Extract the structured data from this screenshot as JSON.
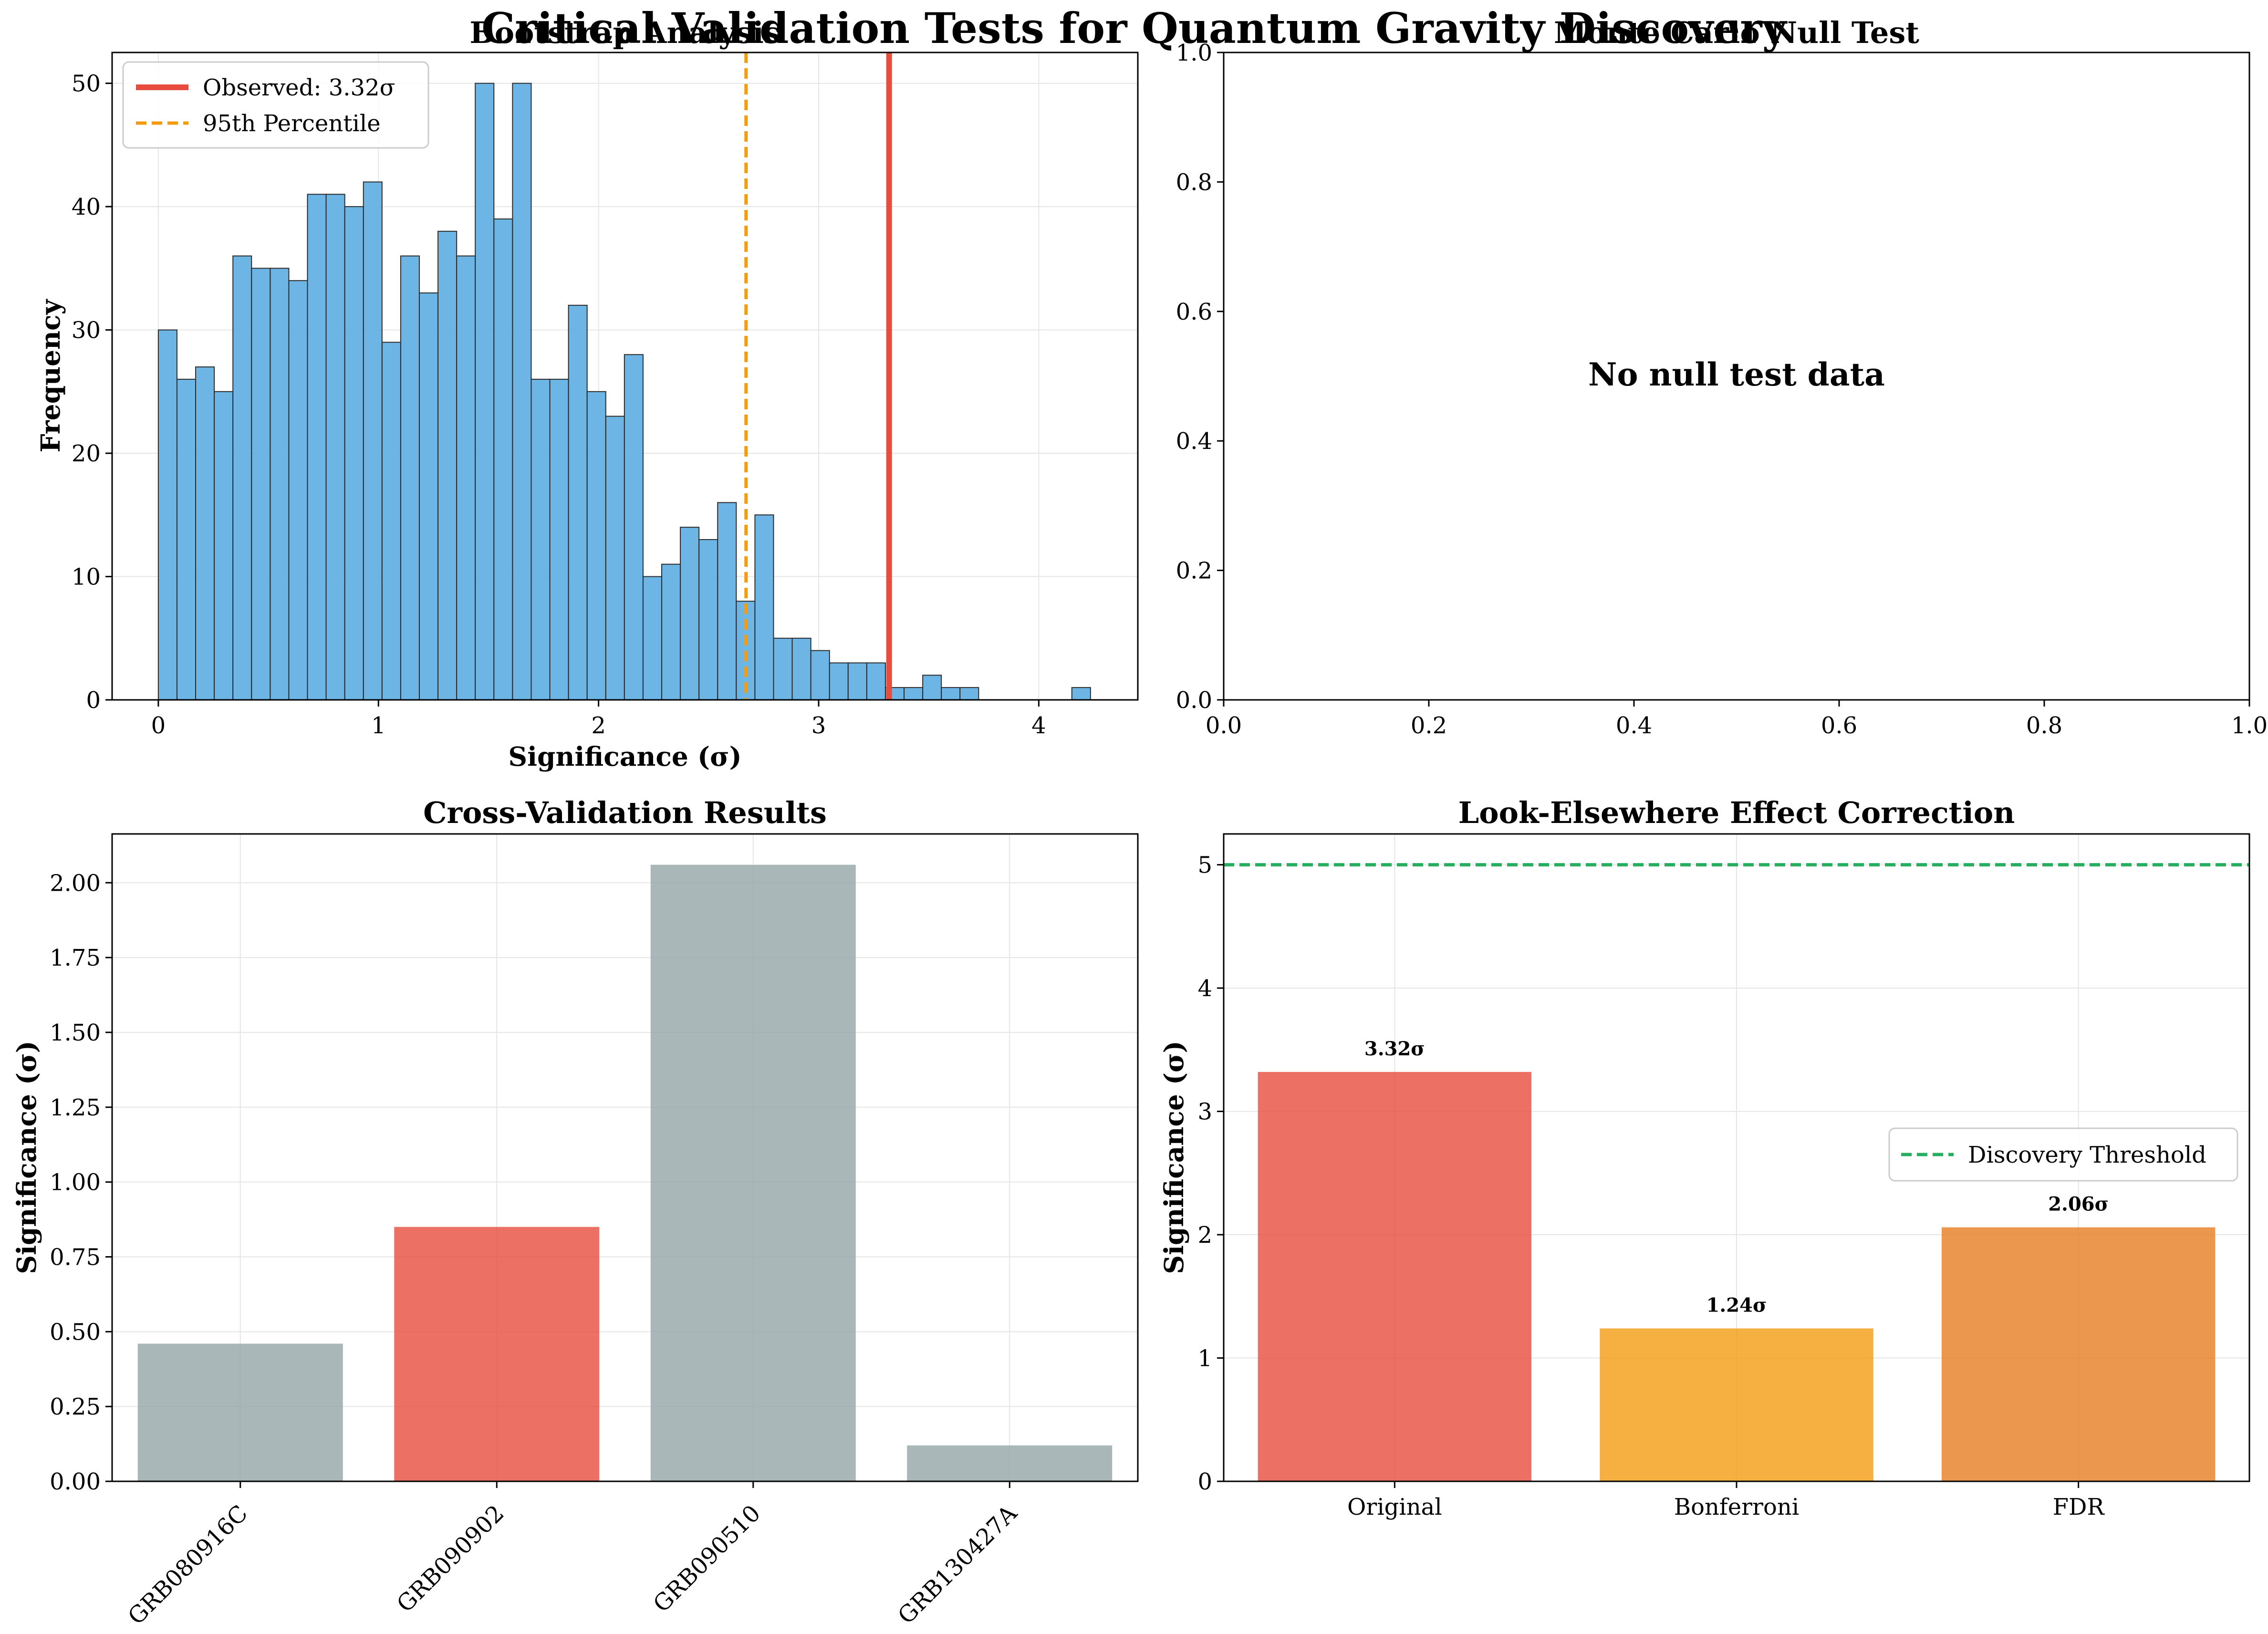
{
  "figure": {
    "title": "Critical Validation Tests for Quantum Gravity Discovery"
  },
  "chart_data": [
    {
      "type": "bar",
      "subtype": "histogram",
      "title": "Bootstrap Analysis",
      "xlabel": "Significance (σ)",
      "ylabel": "Frequency",
      "xlim": [
        -0.21,
        4.45
      ],
      "ylim": [
        0,
        52.5
      ],
      "xticks": [
        0,
        1,
        2,
        3,
        4
      ],
      "yticks": [
        0,
        10,
        20,
        30,
        40,
        50
      ],
      "bin_start": 0.0,
      "bin_width": 0.0847,
      "counts": [
        30,
        26,
        27,
        25,
        36,
        35,
        35,
        34,
        41,
        41,
        40,
        42,
        29,
        36,
        33,
        38,
        36,
        50,
        39,
        50,
        26,
        26,
        32,
        25,
        23,
        28,
        10,
        11,
        14,
        13,
        16,
        8,
        15,
        5,
        5,
        4,
        3,
        3,
        3,
        1,
        1,
        2,
        1,
        1,
        0,
        0,
        0,
        0,
        0,
        1
      ],
      "observed": 3.32,
      "percentile_95": 2.67,
      "legend": {
        "placement": "upper-left",
        "entries": [
          "Observed: 3.32σ",
          "95th Percentile"
        ]
      },
      "grid": true,
      "colors": {
        "bars": "#5DADE2",
        "observed": "#E74C3C",
        "percentile": "#F39C12"
      }
    },
    {
      "type": "scatter",
      "title": "Monte Carlo Null Test",
      "empty_message": "No null test data",
      "xlim": [
        0,
        1
      ],
      "ylim": [
        0,
        1
      ],
      "xticks": [
        "0.0",
        "0.2",
        "0.4",
        "0.6",
        "0.8",
        "1.0"
      ],
      "yticks": [
        "0.0",
        "0.2",
        "0.4",
        "0.6",
        "0.8",
        "1.0"
      ],
      "grid": false
    },
    {
      "type": "bar",
      "title": "Cross-Validation Results",
      "xlabel": "",
      "ylabel": "Significance (σ)",
      "categories": [
        "GRB080916C",
        "GRB090902",
        "GRB090510",
        "GRB130427A"
      ],
      "values": [
        0.46,
        0.85,
        2.06,
        0.12
      ],
      "highlight": "GRB090902",
      "ylim": [
        0,
        2.163
      ],
      "yticks": [
        "0.00",
        "0.25",
        "0.50",
        "0.75",
        "1.00",
        "1.25",
        "1.50",
        "1.75",
        "2.00"
      ],
      "grid": true,
      "colors": {
        "default": "#95A5A6",
        "highlight": "#E74C3C"
      }
    },
    {
      "type": "bar",
      "title": "Look-Elsewhere Effect Correction",
      "xlabel": "",
      "ylabel": "Significance (σ)",
      "categories": [
        "Original",
        "Bonferroni",
        "FDR"
      ],
      "values": [
        3.32,
        1.24,
        2.06
      ],
      "value_labels": [
        "3.32σ",
        "1.24σ",
        "2.06σ"
      ],
      "threshold": 5.0,
      "ylim": [
        0,
        5.25
      ],
      "yticks": [
        0,
        1,
        2,
        3,
        4,
        5
      ],
      "legend": {
        "placement": "center-right",
        "entries": [
          "Discovery Threshold"
        ]
      },
      "grid": true,
      "colors": {
        "bars": [
          "#E74C3C",
          "#F39C12",
          "#E67E22"
        ],
        "threshold": "#27AE60"
      }
    }
  ]
}
